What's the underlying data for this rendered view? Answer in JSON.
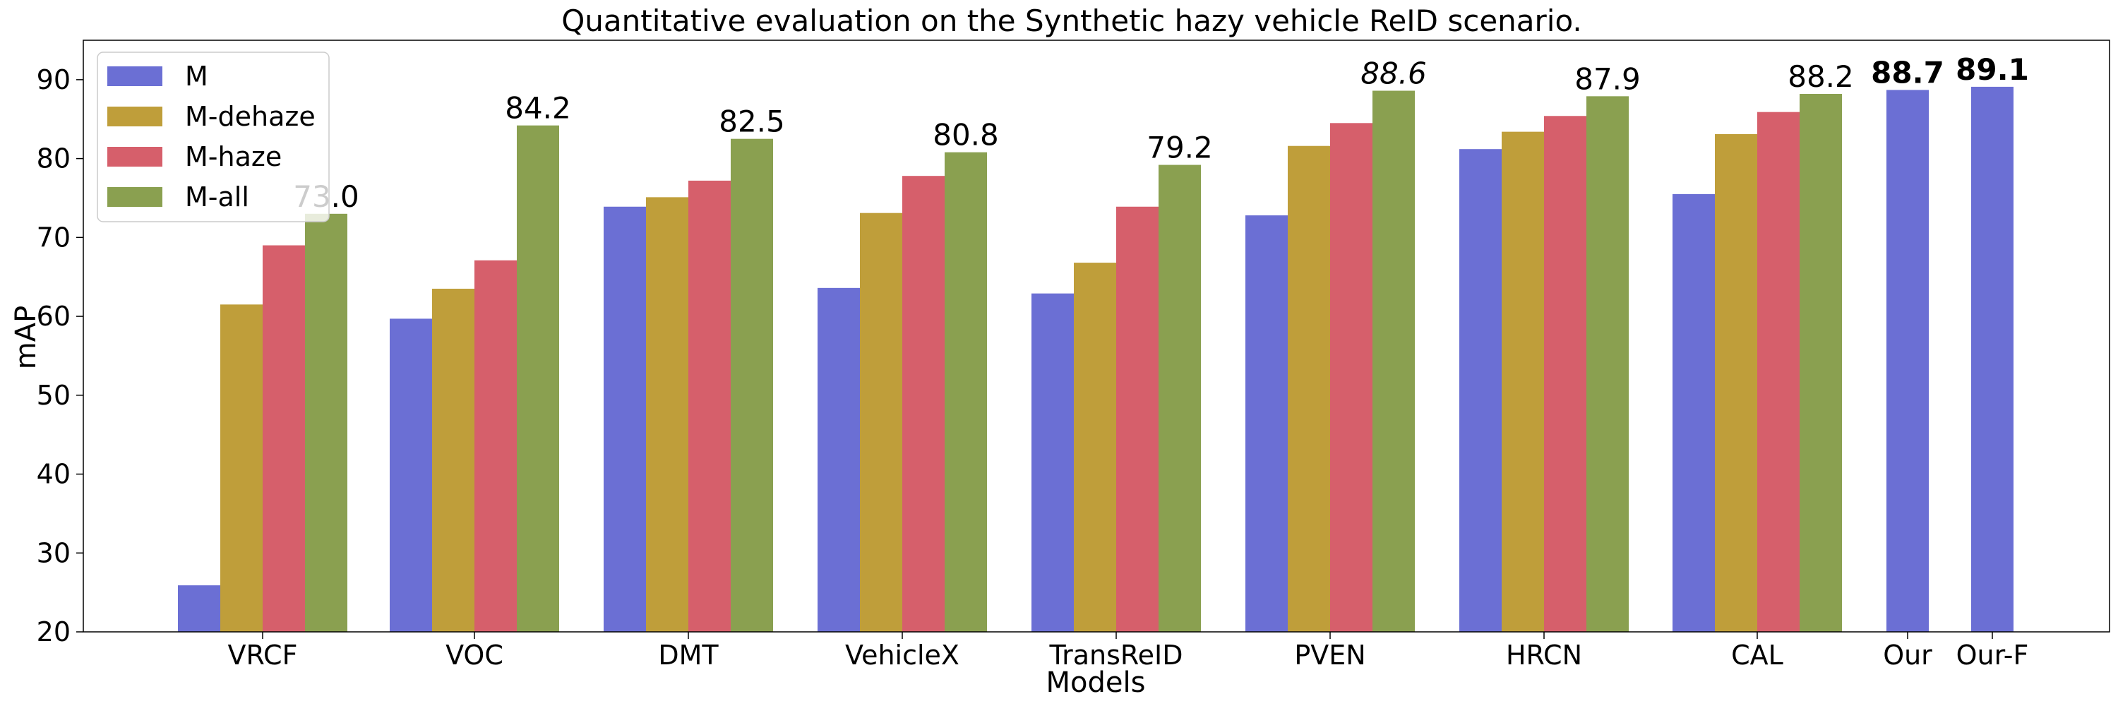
{
  "chart_data": {
    "type": "bar",
    "title": "Quantitative evaluation on the Synthetic hazy vehicle ReID scenario.",
    "xlabel": "Models",
    "ylabel": "mAP",
    "ylim": [
      20,
      95
    ],
    "yticks": [
      20,
      30,
      40,
      50,
      60,
      70,
      80,
      90
    ],
    "grid": false,
    "legend_position": "top-left",
    "categories": [
      "VRCF",
      "VOC",
      "DMT",
      "VehicleX",
      "TransReID",
      "PVEN",
      "HRCN",
      "CAL",
      "Our",
      "Our-F"
    ],
    "series": [
      {
        "name": "M",
        "color": "#6b6fd4",
        "values": [
          25.9,
          59.7,
          73.9,
          63.6,
          62.9,
          72.8,
          81.2,
          75.5,
          88.7,
          89.1
        ]
      },
      {
        "name": "M-dehaze",
        "color": "#bf9e3a",
        "values": [
          61.5,
          63.5,
          75.1,
          73.1,
          66.8,
          81.6,
          83.4,
          83.1,
          null,
          null
        ]
      },
      {
        "name": "M-haze",
        "color": "#d65f6b",
        "values": [
          69.0,
          67.1,
          77.2,
          77.8,
          73.9,
          84.5,
          85.4,
          85.9,
          null,
          null
        ]
      },
      {
        "name": "M-all",
        "color": "#8aa050",
        "values": [
          73.0,
          84.2,
          82.5,
          80.8,
          79.2,
          88.6,
          87.9,
          88.2,
          null,
          null
        ]
      }
    ],
    "data_labels": [
      {
        "category": "VRCF",
        "series": "M-all",
        "text": "73.0",
        "style": "normal"
      },
      {
        "category": "VOC",
        "series": "M-all",
        "text": "84.2",
        "style": "normal"
      },
      {
        "category": "DMT",
        "series": "M-all",
        "text": "82.5",
        "style": "normal"
      },
      {
        "category": "VehicleX",
        "series": "M-all",
        "text": "80.8",
        "style": "normal"
      },
      {
        "category": "TransReID",
        "series": "M-all",
        "text": "79.2",
        "style": "normal"
      },
      {
        "category": "PVEN",
        "series": "M-all",
        "text": "88.6",
        "style": "italic"
      },
      {
        "category": "HRCN",
        "series": "M-all",
        "text": "87.9",
        "style": "normal"
      },
      {
        "category": "CAL",
        "series": "M-all",
        "text": "88.2",
        "style": "normal"
      },
      {
        "category": "Our",
        "series": "M",
        "text": "88.7",
        "style": "bold"
      },
      {
        "category": "Our-F",
        "series": "M",
        "text": "89.1",
        "style": "bold"
      }
    ]
  }
}
